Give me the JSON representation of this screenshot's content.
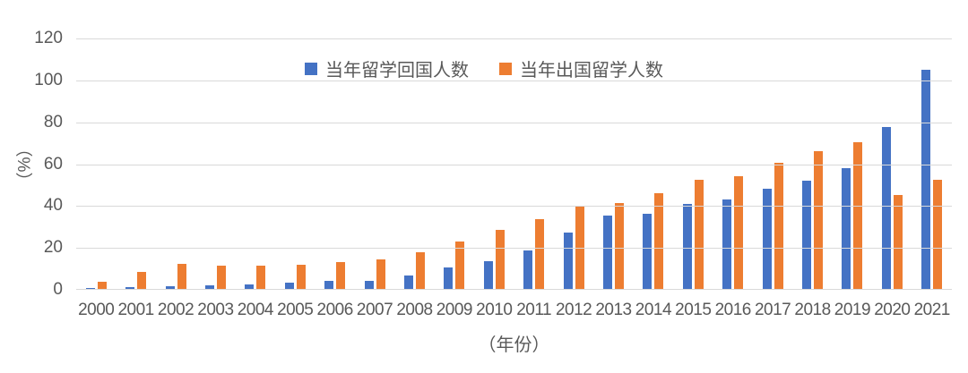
{
  "chart_data": {
    "type": "bar",
    "title": "",
    "categories": [
      "2000",
      "2001",
      "2002",
      "2003",
      "2004",
      "2005",
      "2006",
      "2007",
      "2008",
      "2009",
      "2010",
      "2011",
      "2012",
      "2013",
      "2014",
      "2015",
      "2016",
      "2017",
      "2018",
      "2019",
      "2020",
      "2021"
    ],
    "series": [
      {
        "name": "当年留学回国人数",
        "color": "#4472C4",
        "values": [
          0.91,
          1.21,
          1.81,
          2.01,
          2.48,
          3.5,
          4.2,
          4.4,
          6.93,
          10.83,
          13.48,
          18.62,
          27.29,
          35.35,
          36.48,
          40.91,
          43.25,
          48.09,
          51.94,
          58.03,
          77.7,
          104.9
        ]
      },
      {
        "name": "当年出国留学人数",
        "color": "#ED7D31",
        "values": [
          3.9,
          8.39,
          12.51,
          11.73,
          11.47,
          11.85,
          13.4,
          14.4,
          17.98,
          22.93,
          28.47,
          33.97,
          39.96,
          41.39,
          45.98,
          52.37,
          54.45,
          60.84,
          66.21,
          70.35,
          45.09,
          52.37
        ]
      }
    ],
    "ylabel": "（%）",
    "xlabel": "（年份）",
    "ylim": [
      0,
      120
    ],
    "yticks": [
      0,
      20,
      40,
      60,
      80,
      100,
      120
    ],
    "grid": true,
    "legend_position": "top-center",
    "gridline_color": "#d9d9d9",
    "text_color": "#595959",
    "background_color": "#ffffff"
  }
}
